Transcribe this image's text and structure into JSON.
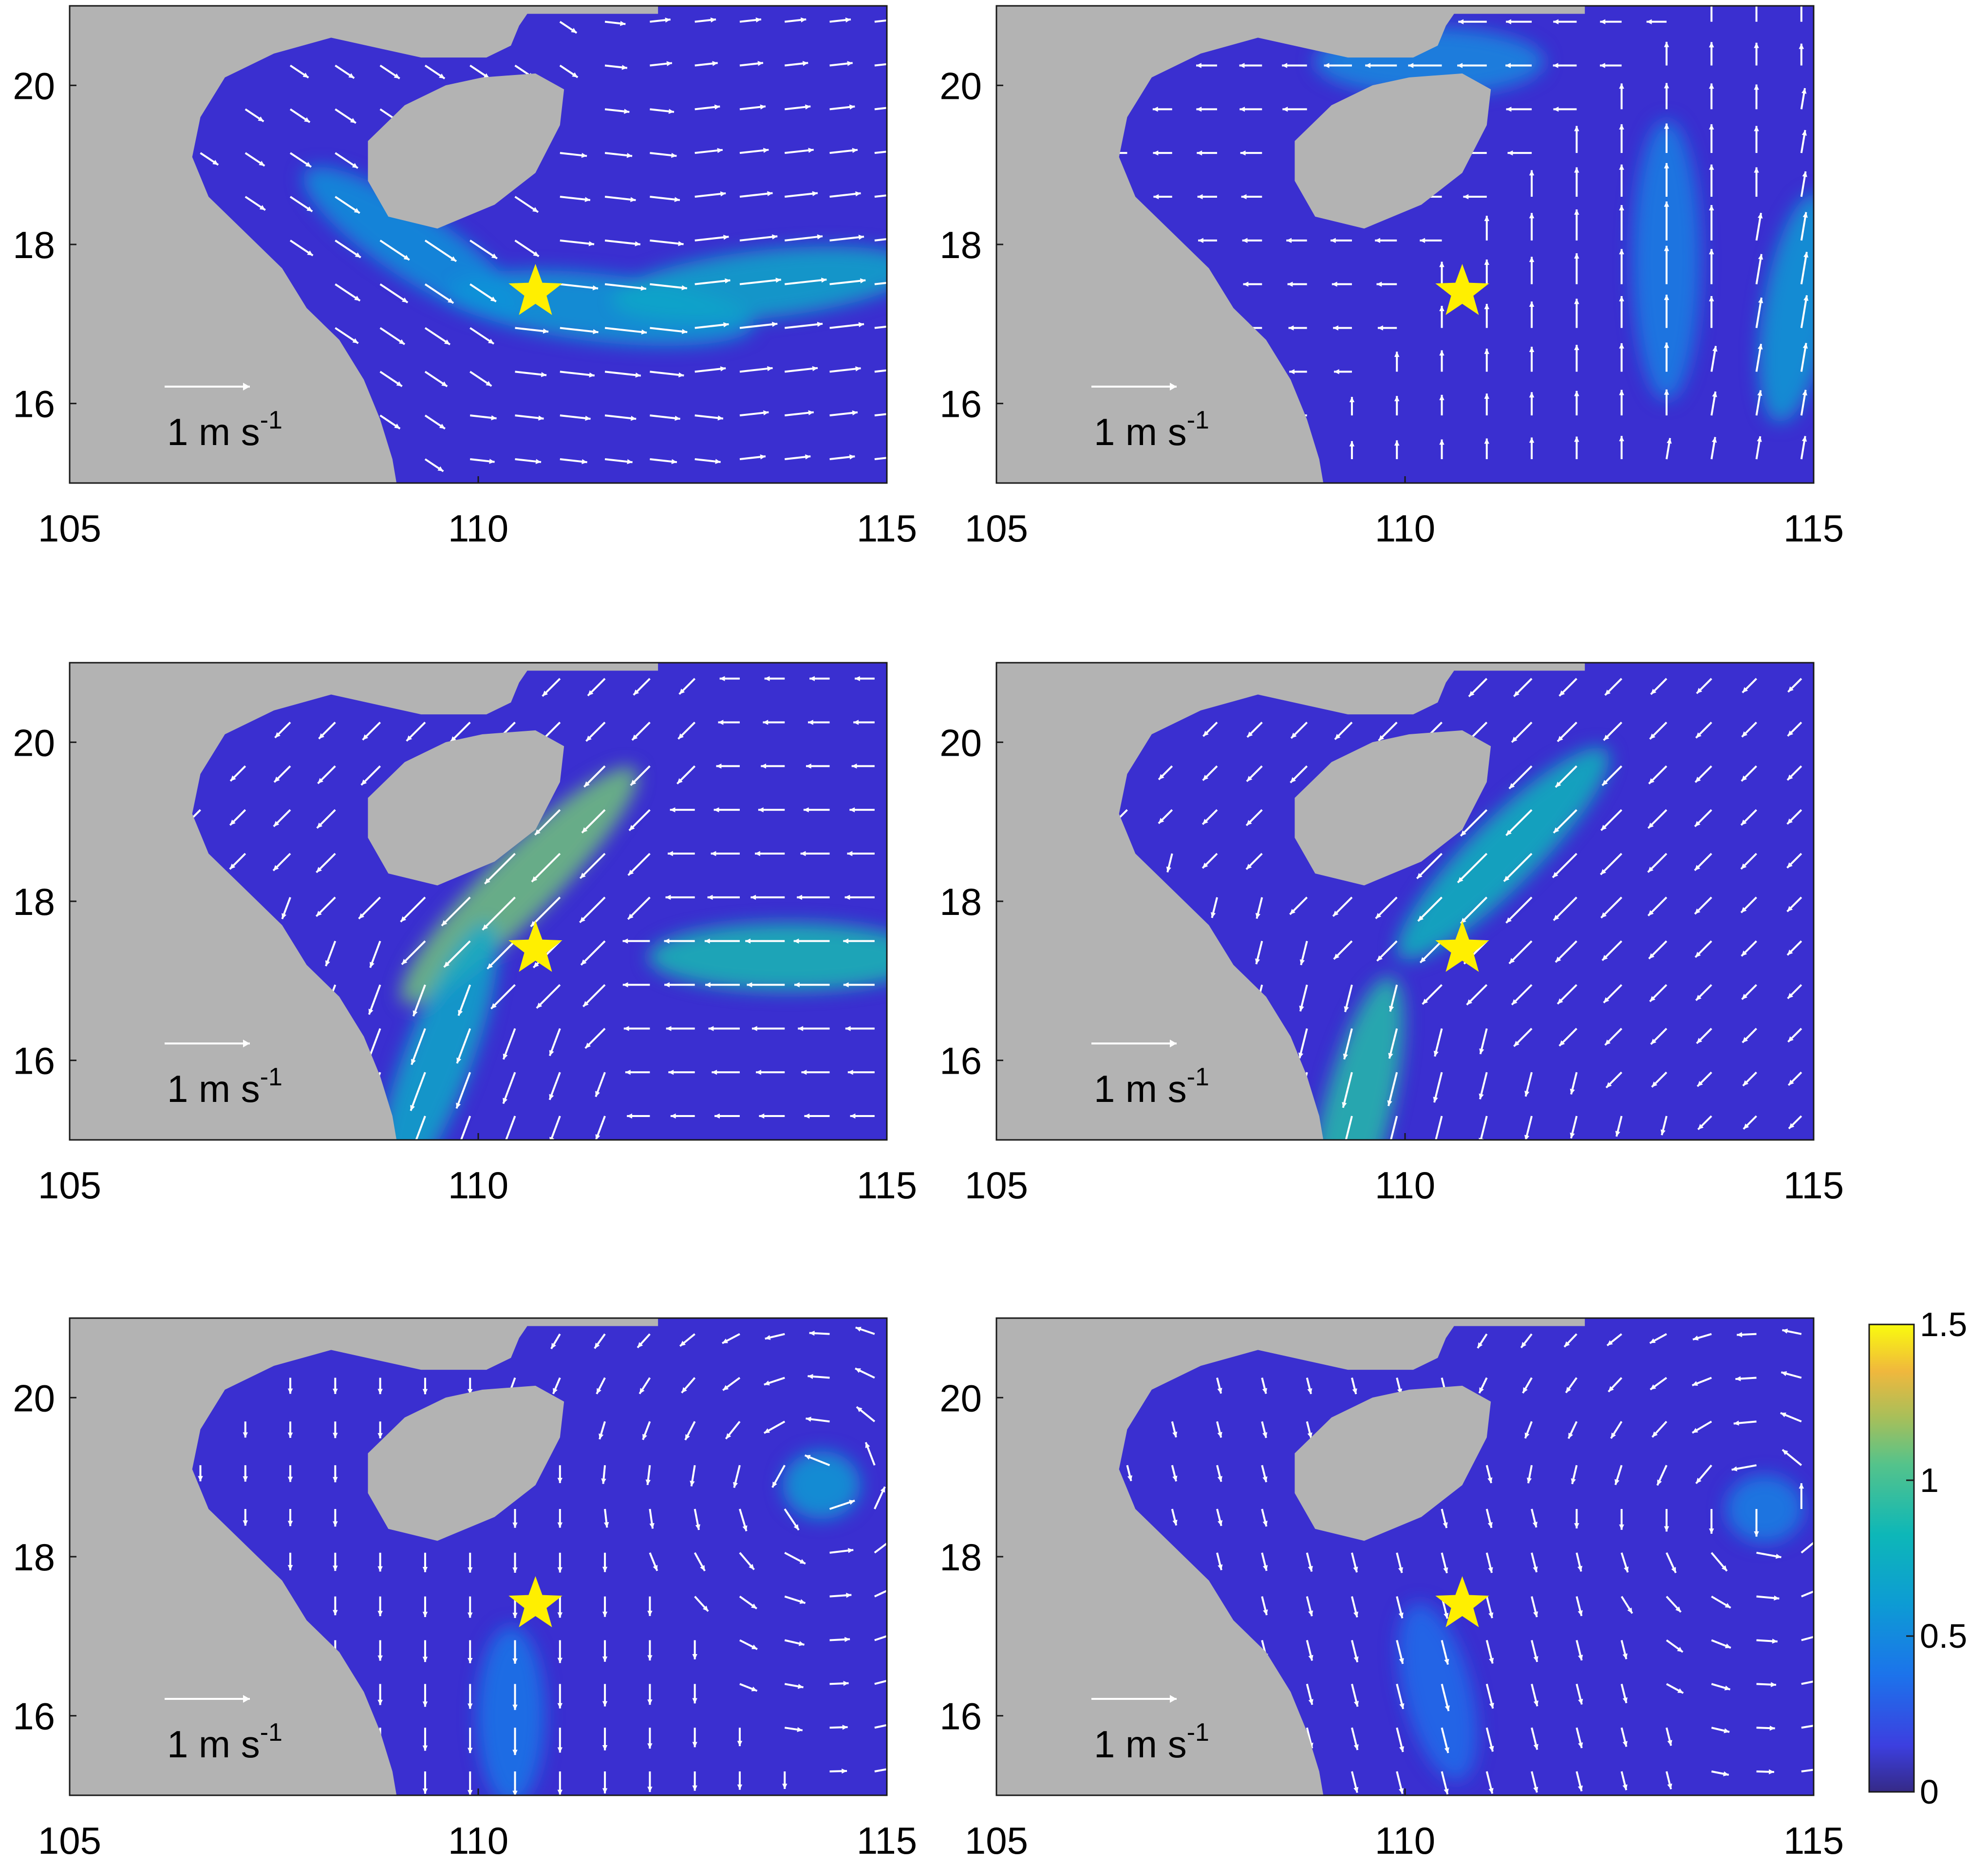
{
  "chart_data": {
    "type": "vector_field_map",
    "panels": [
      {
        "id": "a",
        "star": {
          "lon": 110.7,
          "lat": 17.4
        },
        "scale_arrow_ms": 1,
        "scale_label": "1 m s",
        "scale_exponent": "-1",
        "currents": [
          {
            "lon": 111.5,
            "lat": 17.2,
            "u": 0.9,
            "v": -0.1,
            "speed": 0.6
          },
          {
            "lon": 113.5,
            "lat": 17.5,
            "u": 0.9,
            "v": 0.1,
            "speed": 0.7
          },
          {
            "lon": 109.2,
            "lat": 18.0,
            "u": 0.6,
            "v": -0.4,
            "speed": 0.55
          }
        ]
      },
      {
        "id": "b",
        "star": {
          "lon": 110.7,
          "lat": 17.4
        },
        "scale_arrow_ms": 1,
        "scale_label": "1 m s",
        "scale_exponent": "-1",
        "currents": [
          {
            "lon": 113.2,
            "lat": 17.8,
            "u": 0.0,
            "v": 0.8,
            "speed": 0.45
          },
          {
            "lon": 114.8,
            "lat": 17.2,
            "u": 0.1,
            "v": 0.6,
            "speed": 0.6
          },
          {
            "lon": 110.3,
            "lat": 20.3,
            "u": -0.6,
            "v": 0.0,
            "speed": 0.5
          }
        ]
      },
      {
        "id": "c",
        "star": {
          "lon": 110.7,
          "lat": 17.4
        },
        "scale_arrow_ms": 1,
        "scale_label": "1 m s",
        "scale_exponent": "-1",
        "currents": [
          {
            "lon": 110.5,
            "lat": 18.2,
            "u": -0.7,
            "v": -0.7,
            "speed": 1.1
          },
          {
            "lon": 109.5,
            "lat": 16.0,
            "u": -0.3,
            "v": -0.8,
            "speed": 0.7
          },
          {
            "lon": 113.8,
            "lat": 17.3,
            "u": -0.8,
            "v": 0.0,
            "speed": 0.85
          }
        ]
      },
      {
        "id": "d",
        "star": {
          "lon": 110.7,
          "lat": 17.4
        },
        "scale_arrow_ms": 1,
        "scale_label": "1 m s",
        "scale_exponent": "-1",
        "currents": [
          {
            "lon": 111.2,
            "lat": 18.6,
            "u": -0.6,
            "v": -0.6,
            "speed": 0.8
          },
          {
            "lon": 109.4,
            "lat": 15.3,
            "u": -0.2,
            "v": -0.8,
            "speed": 0.9
          }
        ]
      },
      {
        "id": "e",
        "star": {
          "lon": 110.7,
          "lat": 17.4
        },
        "scale_arrow_ms": 1,
        "scale_label": "1 m s",
        "scale_exponent": "-1",
        "currents": [
          {
            "lon": 114.2,
            "lat": 18.9,
            "u": 0.0,
            "v": 0.0,
            "speed": 0.6
          },
          {
            "lon": 110.4,
            "lat": 16.0,
            "u": 0.0,
            "v": -0.4,
            "speed": 0.4
          }
        ]
      },
      {
        "id": "f",
        "star": {
          "lon": 110.7,
          "lat": 17.4
        },
        "scale_arrow_ms": 1,
        "scale_label": "1 m s",
        "scale_exponent": "-1",
        "currents": [
          {
            "lon": 114.4,
            "lat": 18.6,
            "u": 0.0,
            "v": 0.0,
            "speed": 0.45
          },
          {
            "lon": 110.4,
            "lat": 16.3,
            "u": 0.1,
            "v": -0.4,
            "speed": 0.35
          }
        ]
      }
    ],
    "x_axis": {
      "ticks": [
        105,
        110,
        115
      ],
      "tick_labels": [
        "105",
        "110",
        "115"
      ],
      "range": [
        105,
        115
      ]
    },
    "y_axis": {
      "ticks": [
        16,
        18,
        20
      ],
      "tick_labels": [
        "16",
        "18",
        "20"
      ],
      "range": [
        15,
        21
      ]
    },
    "colorbar": {
      "range": [
        0,
        1.5
      ],
      "ticks": [
        0,
        0.5,
        1,
        1.5
      ],
      "tick_labels": [
        "0",
        "0.5",
        "1",
        "1.5"
      ],
      "colormap": "parula"
    },
    "colors": {
      "land": "#b3b3b3",
      "water_low": "#3a2fd0",
      "arrows": "#ffffff",
      "star": "#ffef00"
    },
    "grid": false,
    "legend": "none"
  }
}
